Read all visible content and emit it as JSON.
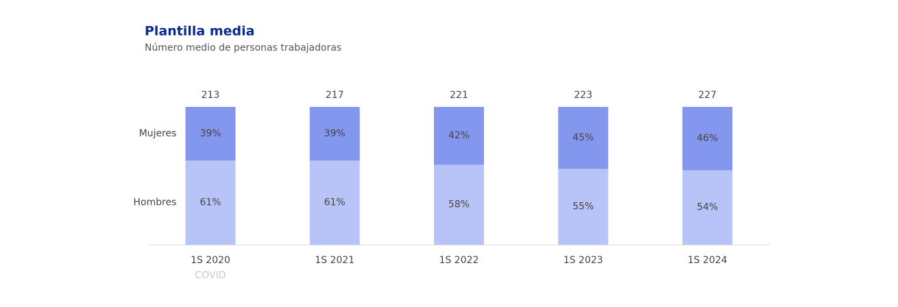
{
  "chart_data": {
    "type": "stacked_bar_100",
    "title": "Plantilla media",
    "subtitle": "Número medio de personas trabajadoras",
    "categories": [
      "1S 2020",
      "1S 2021",
      "1S 2022",
      "1S 2023",
      "1S 2024"
    ],
    "annotation": "COVID",
    "totals": [
      213,
      217,
      221,
      223,
      227
    ],
    "series": [
      {
        "name": "Hombres",
        "color": "#b8c4f7",
        "values": [
          61,
          61,
          58,
          55,
          54
        ],
        "value_labels": [
          "61%",
          "61%",
          "58%",
          "55%",
          "54%"
        ]
      },
      {
        "name": "Mujeres",
        "color": "#8497ee",
        "values": [
          39,
          39,
          42,
          45,
          46
        ],
        "value_labels": [
          "39%",
          "39%",
          "42%",
          "45%",
          "46%"
        ]
      }
    ],
    "ylim": [
      0,
      100
    ]
  }
}
